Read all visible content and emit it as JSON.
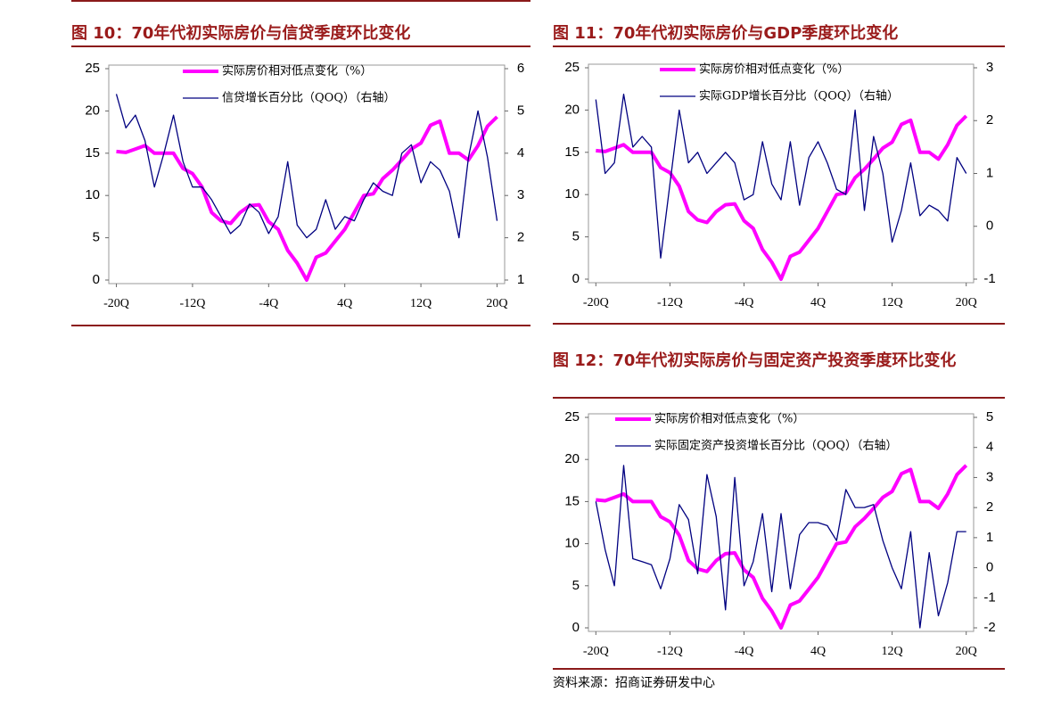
{
  "chart_data": [
    {
      "type": "line",
      "title": "图 10：70年代初实际房价与信贷季度环比变化",
      "x": [
        -20,
        -19,
        -18,
        -17,
        -16,
        -15,
        -14,
        -13,
        -12,
        -11,
        -10,
        -9,
        -8,
        -7,
        -6,
        -5,
        -4,
        -3,
        -2,
        -1,
        0,
        1,
        2,
        3,
        4,
        5,
        6,
        7,
        8,
        9,
        10,
        11,
        12,
        13,
        14,
        15,
        16,
        17,
        18,
        19,
        20
      ],
      "xlim": [
        -20,
        20
      ],
      "xticks": [
        {
          "value": -20,
          "label": "-20Q"
        },
        {
          "value": -12,
          "label": "-12Q"
        },
        {
          "value": -4,
          "label": "-4Q"
        },
        {
          "value": 4,
          "label": "4Q"
        },
        {
          "value": 12,
          "label": "12Q"
        },
        {
          "value": 20,
          "label": "20Q"
        }
      ],
      "ylim": [
        0,
        25
      ],
      "yticks": [
        0,
        5,
        10,
        15,
        20,
        25
      ],
      "y2lim": [
        1,
        6
      ],
      "y2ticks": [
        1,
        2,
        3,
        4,
        5,
        6
      ],
      "series": [
        {
          "name": "实际房价相对低点变化（%）",
          "color": "#ff00ff",
          "values": [
            15.2,
            15.1,
            15.5,
            15.9,
            15.0,
            15.0,
            15.0,
            13.2,
            12.6,
            11.0,
            8.0,
            7.0,
            6.7,
            8.0,
            8.8,
            8.9,
            6.9,
            6.0,
            3.5,
            2.0,
            0,
            2.7,
            3.2,
            4.6,
            6.0,
            8.0,
            10.0,
            10.2,
            12.0,
            13.0,
            14.2,
            15.5,
            16.2,
            18.3,
            18.8,
            15.0,
            15.0,
            14.2,
            15.9,
            18.2,
            19.3
          ]
        },
        {
          "name": "信贷增长百分比（QOQ）（右轴）",
          "color": "#000080",
          "axis": "y2",
          "values": [
            5.4,
            4.6,
            4.9,
            4.3,
            3.2,
            4.0,
            4.9,
            3.8,
            3.2,
            3.2,
            2.9,
            2.5,
            2.1,
            2.3,
            2.8,
            2.6,
            2.1,
            2.5,
            3.8,
            2.3,
            2.0,
            2.2,
            2.9,
            2.2,
            2.5,
            2.4,
            2.9,
            3.3,
            3.1,
            3.0,
            4.0,
            4.2,
            3.3,
            3.8,
            3.6,
            3.1,
            2.0,
            3.9,
            5.0,
            3.9,
            2.4
          ]
        }
      ]
    },
    {
      "type": "line",
      "title": "图 11：70年代初实际房价与GDP季度环比变化",
      "x": [
        -20,
        -19,
        -18,
        -17,
        -16,
        -15,
        -14,
        -13,
        -12,
        -11,
        -10,
        -9,
        -8,
        -7,
        -6,
        -5,
        -4,
        -3,
        -2,
        -1,
        0,
        1,
        2,
        3,
        4,
        5,
        6,
        7,
        8,
        9,
        10,
        11,
        12,
        13,
        14,
        15,
        16,
        17,
        18,
        19,
        20
      ],
      "xlim": [
        -20,
        20
      ],
      "xticks": [
        {
          "value": -20,
          "label": "-20Q"
        },
        {
          "value": -12,
          "label": "-12Q"
        },
        {
          "value": -4,
          "label": "-4Q"
        },
        {
          "value": 4,
          "label": "4Q"
        },
        {
          "value": 12,
          "label": "12Q"
        },
        {
          "value": 20,
          "label": "20Q"
        }
      ],
      "ylim": [
        0,
        25
      ],
      "yticks": [
        0,
        5,
        10,
        15,
        20,
        25
      ],
      "y2lim": [
        -1,
        3
      ],
      "y2ticks": [
        -1,
        0,
        1,
        2,
        3
      ],
      "series": [
        {
          "name": "实际房价相对低点变化（%）",
          "color": "#ff00ff",
          "values": [
            15.2,
            15.1,
            15.5,
            15.9,
            15.0,
            15.0,
            15.0,
            13.2,
            12.6,
            11.0,
            8.0,
            7.0,
            6.7,
            8.0,
            8.8,
            8.9,
            6.9,
            6.0,
            3.5,
            2.0,
            0,
            2.7,
            3.2,
            4.6,
            6.0,
            8.0,
            10.0,
            10.2,
            12.0,
            13.0,
            14.2,
            15.5,
            16.2,
            18.3,
            18.8,
            15.0,
            15.0,
            14.2,
            15.9,
            18.2,
            19.3
          ]
        },
        {
          "name": "实际GDP增长百分比（QOQ）（右轴）",
          "color": "#000080",
          "axis": "y2",
          "values": [
            2.4,
            1.0,
            1.2,
            2.5,
            1.5,
            1.7,
            1.5,
            -0.6,
            0.8,
            2.2,
            1.2,
            1.4,
            1.0,
            1.2,
            1.4,
            1.2,
            0.5,
            0.6,
            1.6,
            0.8,
            0.5,
            1.6,
            0.4,
            1.3,
            1.6,
            1.2,
            0.7,
            0.6,
            2.2,
            0.3,
            1.7,
            1.0,
            -0.3,
            0.3,
            1.2,
            0.2,
            0.4,
            0.3,
            0.1,
            1.3,
            1.0
          ]
        }
      ]
    },
    {
      "type": "line",
      "title": "图 12：70年代初实际房价与固定资产投资季度环比变化",
      "x": [
        -20,
        -19,
        -18,
        -17,
        -16,
        -15,
        -14,
        -13,
        -12,
        -11,
        -10,
        -9,
        -8,
        -7,
        -6,
        -5,
        -4,
        -3,
        -2,
        -1,
        0,
        1,
        2,
        3,
        4,
        5,
        6,
        7,
        8,
        9,
        10,
        11,
        12,
        13,
        14,
        15,
        16,
        17,
        18,
        19,
        20
      ],
      "xlim": [
        -20,
        20
      ],
      "xticks": [
        {
          "value": -20,
          "label": "-20Q"
        },
        {
          "value": -12,
          "label": "-12Q"
        },
        {
          "value": -4,
          "label": "-4Q"
        },
        {
          "value": 4,
          "label": "4Q"
        },
        {
          "value": 12,
          "label": "12Q"
        },
        {
          "value": 20,
          "label": "20Q"
        }
      ],
      "ylim": [
        0,
        25
      ],
      "yticks": [
        0,
        5,
        10,
        15,
        20,
        25
      ],
      "y2lim": [
        -2,
        5
      ],
      "y2ticks": [
        -2,
        -1,
        0,
        1,
        2,
        3,
        4,
        5
      ],
      "series": [
        {
          "name": "实际房价相对低点变化（%）",
          "color": "#ff00ff",
          "values": [
            15.2,
            15.1,
            15.5,
            15.9,
            15.0,
            15.0,
            15.0,
            13.2,
            12.6,
            11.0,
            8.0,
            7.0,
            6.7,
            8.0,
            8.8,
            8.9,
            6.9,
            6.0,
            3.5,
            2.0,
            0,
            2.7,
            3.2,
            4.6,
            6.0,
            8.0,
            10.0,
            10.2,
            12.0,
            13.0,
            14.2,
            15.5,
            16.2,
            18.3,
            18.8,
            15.0,
            15.0,
            14.2,
            15.9,
            18.2,
            19.3
          ]
        },
        {
          "name": "实际固定资产投资增长百分比（QOQ）（右轴）",
          "color": "#000080",
          "axis": "y2",
          "values": [
            2.2,
            0.6,
            -0.6,
            3.4,
            0.3,
            0.2,
            0.1,
            -0.7,
            0.3,
            2.1,
            1.6,
            -0.2,
            3.1,
            1.7,
            -1.4,
            3.0,
            -0.6,
            0.2,
            1.8,
            -0.8,
            1.8,
            -0.7,
            1.1,
            1.5,
            1.5,
            1.4,
            0.9,
            2.6,
            2.0,
            2.0,
            2.1,
            0.9,
            0.0,
            -0.7,
            1.2,
            -2.0,
            0.5,
            -1.6,
            -0.5,
            1.2,
            1.2
          ]
        }
      ]
    }
  ],
  "source": "资料来源：招商证券研发中心"
}
